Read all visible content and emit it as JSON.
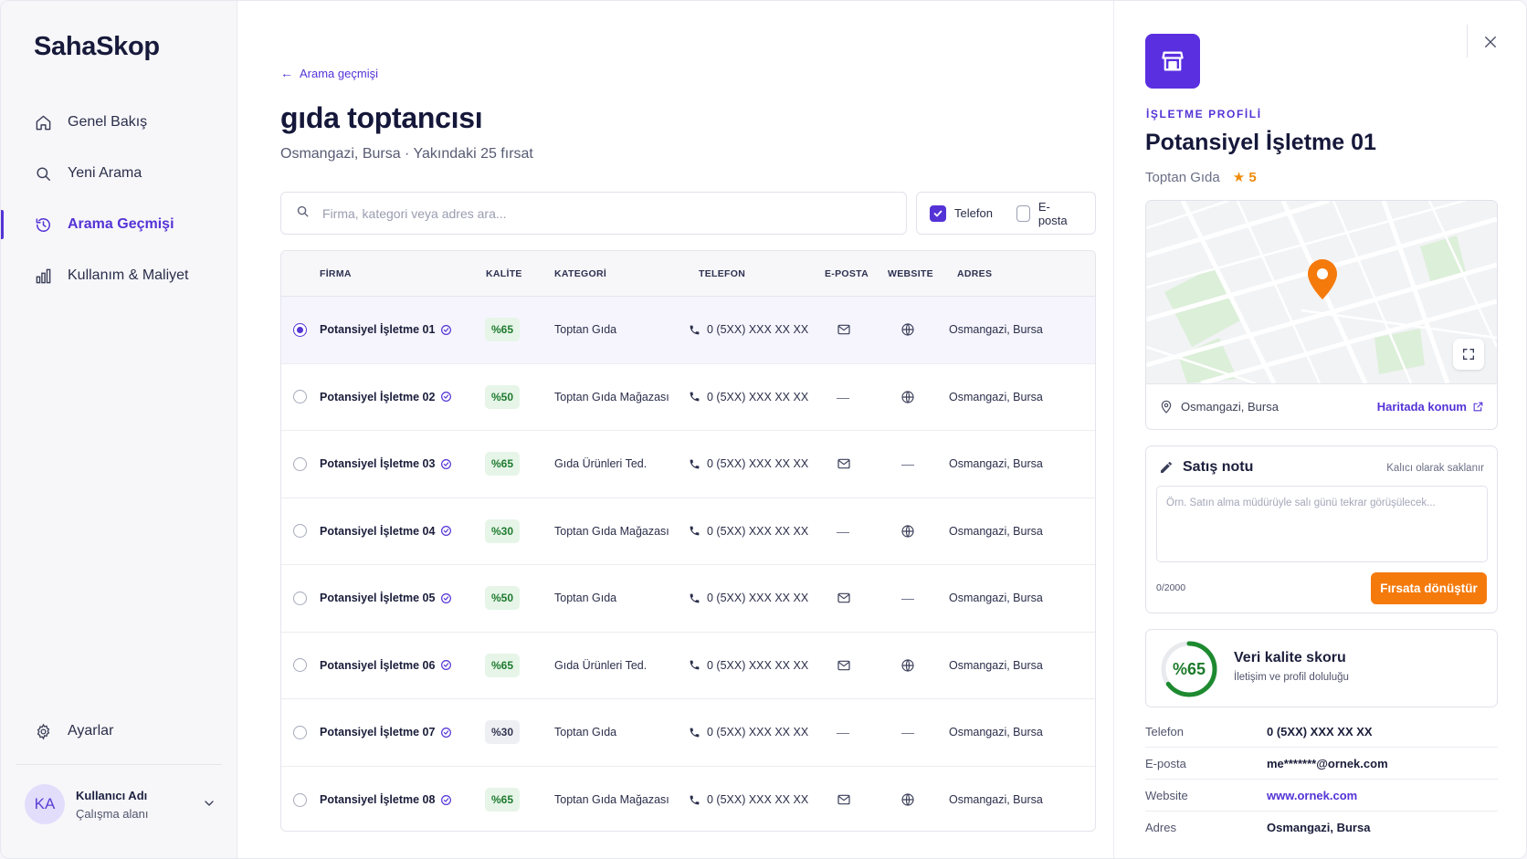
{
  "app": {
    "name": "SahaSkop"
  },
  "sidebar": {
    "items": [
      {
        "label": "Genel Bakış"
      },
      {
        "label": "Yeni Arama"
      },
      {
        "label": "Arama Geçmişi"
      },
      {
        "label": "Kullanım & Maliyet"
      }
    ],
    "settings_label": "Ayarlar",
    "user": {
      "initials": "KA",
      "name": "Kullanıcı Adı",
      "workspace": "Çalışma alanı"
    }
  },
  "main": {
    "back_label": "Arama geçmişi",
    "title": "gıda toptancısı",
    "subtitle": "Osmangazi, Bursa · Yakındaki 25 fırsat",
    "search_placeholder": "Firma, kategori veya adres ara...",
    "filters": {
      "phone_label": "Telefon",
      "phone_checked": true,
      "email_label": "E-posta",
      "email_checked": false
    },
    "columns": [
      "FİRMA",
      "KALİTE",
      "KATEGORİ",
      "TELEFON",
      "E-POSTA",
      "WEBSITE",
      "ADRES"
    ],
    "rows": [
      {
        "name": "Potansiyel İşletme 01",
        "quality": "%65",
        "quality_level": "high",
        "category": "Toptan Gıda",
        "phone": "0 (5XX) XXX XX XX",
        "has_email": true,
        "has_website": true,
        "address": "Osmangazi, Bursa",
        "selected": true
      },
      {
        "name": "Potansiyel İşletme 02",
        "quality": "%50",
        "quality_level": "high",
        "category": "Toptan Gıda Mağazası",
        "phone": "0 (5XX) XXX XX XX",
        "has_email": false,
        "has_website": true,
        "address": "Osmangazi, Bursa",
        "selected": false
      },
      {
        "name": "Potansiyel İşletme 03",
        "quality": "%65",
        "quality_level": "high",
        "category": "Gıda Ürünleri Ted.",
        "phone": "0 (5XX) XXX XX XX",
        "has_email": true,
        "has_website": false,
        "address": "Osmangazi, Bursa",
        "selected": false
      },
      {
        "name": "Potansiyel İşletme 04",
        "quality": "%30",
        "quality_level": "high",
        "category": "Toptan Gıda Mağazası",
        "phone": "0 (5XX) XXX XX XX",
        "has_email": false,
        "has_website": true,
        "address": "Osmangazi, Bursa",
        "selected": false
      },
      {
        "name": "Potansiyel İşletme 05",
        "quality": "%50",
        "quality_level": "high",
        "category": "Toptan Gıda",
        "phone": "0 (5XX) XXX XX XX",
        "has_email": true,
        "has_website": false,
        "address": "Osmangazi, Bursa",
        "selected": false
      },
      {
        "name": "Potansiyel İşletme 06",
        "quality": "%65",
        "quality_level": "high",
        "category": "Gıda Ürünleri Ted.",
        "phone": "0 (5XX) XXX XX XX",
        "has_email": true,
        "has_website": true,
        "address": "Osmangazi, Bursa",
        "selected": false
      },
      {
        "name": "Potansiyel İşletme 07",
        "quality": "%30",
        "quality_level": "low",
        "category": "Toptan Gıda",
        "phone": "0 (5XX) XXX XX XX",
        "has_email": false,
        "has_website": false,
        "address": "Osmangazi, Bursa",
        "selected": false
      },
      {
        "name": "Potansiyel İşletme 08",
        "quality": "%65",
        "quality_level": "high",
        "category": "Toptan Gıda Mağazası",
        "phone": "0 (5XX) XXX XX XX",
        "has_email": true,
        "has_website": true,
        "address": "Osmangazi, Bursa",
        "selected": false
      }
    ]
  },
  "panel": {
    "eyebrow": "İŞLETME PROFİLİ",
    "title": "Potansiyel İşletme 01",
    "category": "Toptan Gıda",
    "rating": "★ 5",
    "location": "Osmangazi, Bursa",
    "map_link": "Haritada konum",
    "note": {
      "title": "Satış notu",
      "hint": "Kalıcı olarak saklanır",
      "placeholder": "Örn. Satın alma müdürüyle salı günü tekrar görüşülecek...",
      "count": "0/2000",
      "button": "Fırsata dönüştür"
    },
    "quality": {
      "value": "%65",
      "fraction": 0.65,
      "title": "Veri kalite skoru",
      "subtitle": "İletişim ve profil doluluğu"
    },
    "details": [
      {
        "key": "Telefon",
        "value": "0 (5XX) XXX XX XX",
        "link": false
      },
      {
        "key": "E-posta",
        "value": "me*******@ornek.com",
        "link": false
      },
      {
        "key": "Website",
        "value": "www.ornek.com",
        "link": true
      },
      {
        "key": "Adres",
        "value": "Osmangazi, Bursa",
        "link": false
      }
    ]
  },
  "colors": {
    "accent": "#5433d6",
    "orange": "#f57a0c",
    "green": "#1f7a2e"
  }
}
